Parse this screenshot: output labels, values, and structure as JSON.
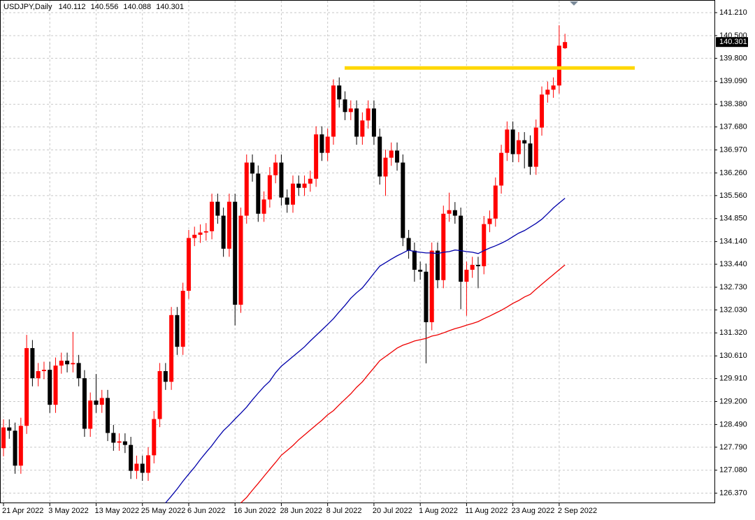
{
  "chart_data": {
    "type": "candlestick",
    "title": "USDJPY,Daily",
    "categories": [
      "21 Apr 2022",
      null,
      null,
      null,
      null,
      null,
      null,
      null,
      "3 May 2022",
      null,
      null,
      null,
      null,
      null,
      null,
      null,
      "13 May 2022",
      null,
      null,
      null,
      null,
      null,
      null,
      null,
      "25 May 2022",
      null,
      null,
      null,
      null,
      null,
      null,
      null,
      "6 Jun 2022",
      null,
      null,
      null,
      null,
      null,
      null,
      null,
      "16 Jun 2022",
      null,
      null,
      null,
      null,
      null,
      null,
      null,
      "28 Jun 2022",
      null,
      null,
      null,
      null,
      null,
      null,
      null,
      "8 Jul 2022",
      null,
      null,
      null,
      null,
      null,
      null,
      null,
      "20 Jul 2022",
      null,
      null,
      null,
      null,
      null,
      null,
      null,
      "1 Aug 2022",
      null,
      null,
      null,
      null,
      null,
      null,
      null,
      "11 Aug 2022",
      null,
      null,
      null,
      null,
      null,
      null,
      null,
      "23 Aug 2022",
      null,
      null,
      null,
      null,
      null,
      null,
      null,
      "2 Sep 2022",
      null
    ],
    "candles": {
      "up_color": "#ff0000",
      "down_color": "#000000",
      "open": [
        127.76,
        128.4,
        128.3,
        127.22,
        128.45,
        130.85,
        129.92,
        130.14,
        130.18,
        129.1,
        130.31,
        130.46,
        130.35,
        130.39,
        129.92,
        128.36,
        129.23,
        129.1,
        129.31,
        128.23,
        127.93,
        127.97,
        127.86,
        127.06,
        127.28,
        127.0,
        127.54,
        128.66,
        130.14,
        129.81,
        131.87,
        130.89,
        132.62,
        134.25,
        134.35,
        134.42,
        134.46,
        135.37,
        134.94,
        133.92,
        135.37,
        132.19,
        134.94,
        136.58,
        136.24,
        135.0,
        135.44,
        136.19,
        136.58,
        135.5,
        135.28,
        135.93,
        135.8,
        135.93,
        136.08,
        137.45,
        136.88,
        137.38,
        138.96,
        138.53,
        138.14,
        138.25,
        137.38,
        137.88,
        138.25,
        137.38,
        136.15,
        136.73,
        136.95,
        136.58,
        134.25,
        133.86,
        133.27,
        133.21,
        131.65,
        133.86,
        132.95,
        135.0,
        135.11,
        134.94,
        132.9,
        133.27,
        133.42,
        133.38,
        134.68,
        134.85,
        135.87,
        136.88,
        137.6,
        136.84,
        137.27,
        137.17,
        136.45,
        137.66,
        138.68,
        138.83,
        138.96,
        140.112
      ],
      "high": [
        128.65,
        128.65,
        128.55,
        128.7,
        131.26,
        131.1,
        130.39,
        130.43,
        130.43,
        130.56,
        130.71,
        130.71,
        131.35,
        130.64,
        130.17,
        129.48,
        130.05,
        129.56,
        129.56,
        128.48,
        128.22,
        128.22,
        128.11,
        127.53,
        127.53,
        127.79,
        128.91,
        130.39,
        130.39,
        132.12,
        132.12,
        132.87,
        134.5,
        134.6,
        134.67,
        134.71,
        135.62,
        135.62,
        135.19,
        135.62,
        135.62,
        135.19,
        136.83,
        136.83,
        136.49,
        135.69,
        136.44,
        136.83,
        136.83,
        135.75,
        136.18,
        136.18,
        136.18,
        136.33,
        137.7,
        137.7,
        137.63,
        139.15,
        139.21,
        138.78,
        138.5,
        138.5,
        138.13,
        138.5,
        138.5,
        137.63,
        136.98,
        137.2,
        137.2,
        136.83,
        134.5,
        134.11,
        133.52,
        133.46,
        134.11,
        134.11,
        135.25,
        135.65,
        135.36,
        135.19,
        133.52,
        133.67,
        133.67,
        134.93,
        135.1,
        136.12,
        137.13,
        137.85,
        137.85,
        137.52,
        137.52,
        137.42,
        137.91,
        138.93,
        139.08,
        139.21,
        140.82,
        140.556
      ],
      "low": [
        127.51,
        128.05,
        126.97,
        126.97,
        128.2,
        129.67,
        129.67,
        129.89,
        128.85,
        128.85,
        130.06,
        130.1,
        130.1,
        129.67,
        128.11,
        128.11,
        128.85,
        128.85,
        127.98,
        127.68,
        127.68,
        127.61,
        126.81,
        126.81,
        126.75,
        126.75,
        127.29,
        128.41,
        129.56,
        129.56,
        130.64,
        130.64,
        132.37,
        134.0,
        134.1,
        134.17,
        134.21,
        134.69,
        133.67,
        133.67,
        131.55,
        131.94,
        134.69,
        135.99,
        134.75,
        134.75,
        135.19,
        135.94,
        135.25,
        135.03,
        135.03,
        135.55,
        135.55,
        135.68,
        135.83,
        136.63,
        136.63,
        137.13,
        138.28,
        137.89,
        137.89,
        137.13,
        137.13,
        137.63,
        137.13,
        135.9,
        135.55,
        136.48,
        136.33,
        134.0,
        133.61,
        132.9,
        132.96,
        130.38,
        131.4,
        132.7,
        132.7,
        134.75,
        134.69,
        132.05,
        131.85,
        133.02,
        132.7,
        133.13,
        134.43,
        134.6,
        135.62,
        136.63,
        136.59,
        136.59,
        136.4,
        136.2,
        136.2,
        137.41,
        138.43,
        138.58,
        138.71,
        140.088
      ],
      "close": [
        128.4,
        128.3,
        127.22,
        128.45,
        130.85,
        129.92,
        130.14,
        130.18,
        129.1,
        130.31,
        130.46,
        130.35,
        130.39,
        129.92,
        128.36,
        129.23,
        129.1,
        129.31,
        128.23,
        127.93,
        127.97,
        127.86,
        127.06,
        127.28,
        127.0,
        127.54,
        128.66,
        130.14,
        129.81,
        131.87,
        130.89,
        132.62,
        134.25,
        134.35,
        134.42,
        134.46,
        135.37,
        134.94,
        133.92,
        135.37,
        132.19,
        134.94,
        136.58,
        136.24,
        135.0,
        135.44,
        136.19,
        136.58,
        135.5,
        135.28,
        135.93,
        135.8,
        135.93,
        136.08,
        137.45,
        136.88,
        137.38,
        138.96,
        138.53,
        138.14,
        138.25,
        137.38,
        137.88,
        138.25,
        137.38,
        136.15,
        136.73,
        136.95,
        136.58,
        134.25,
        133.86,
        133.27,
        133.21,
        131.65,
        133.86,
        132.95,
        135.0,
        135.11,
        134.94,
        132.9,
        133.27,
        133.42,
        133.38,
        134.68,
        134.85,
        135.87,
        136.88,
        137.6,
        136.84,
        137.27,
        137.17,
        136.45,
        137.66,
        138.68,
        138.83,
        138.96,
        140.19,
        140.301
      ]
    },
    "lines": [
      {
        "color": "#0000aa",
        "values": [
          null,
          null,
          null,
          null,
          null,
          null,
          null,
          null,
          null,
          null,
          null,
          null,
          null,
          null,
          null,
          null,
          null,
          null,
          null,
          null,
          null,
          null,
          null,
          null,
          null,
          null,
          null,
          null,
          126.07,
          126.28,
          126.5,
          126.74,
          126.96,
          127.17,
          127.41,
          127.63,
          127.84,
          128.08,
          128.3,
          128.47,
          128.66,
          128.84,
          129.03,
          129.25,
          129.46,
          129.66,
          129.83,
          130.09,
          130.29,
          130.44,
          130.59,
          130.74,
          130.89,
          131.07,
          131.24,
          131.41,
          131.58,
          131.76,
          131.97,
          132.17,
          132.39,
          132.56,
          132.71,
          132.93,
          133.16,
          133.38,
          133.49,
          133.6,
          133.7,
          133.79,
          133.88,
          133.83,
          133.81,
          133.79,
          133.79,
          133.77,
          133.81,
          133.83,
          133.88,
          133.86,
          133.83,
          133.81,
          133.77,
          133.86,
          133.94,
          134.01,
          134.09,
          134.18,
          134.29,
          134.4,
          134.48,
          134.59,
          134.7,
          134.83,
          135.0,
          135.18,
          135.33,
          135.48
        ]
      },
      {
        "color": "#ee0000",
        "values": [
          null,
          null,
          null,
          null,
          null,
          null,
          null,
          null,
          null,
          null,
          null,
          null,
          null,
          null,
          null,
          null,
          null,
          null,
          null,
          null,
          null,
          null,
          null,
          null,
          null,
          null,
          null,
          null,
          null,
          null,
          null,
          null,
          null,
          null,
          null,
          null,
          null,
          null,
          null,
          null,
          null,
          126.07,
          126.24,
          126.46,
          126.67,
          126.89,
          127.11,
          127.32,
          127.54,
          127.69,
          127.84,
          128.02,
          128.17,
          128.32,
          128.47,
          128.62,
          128.79,
          128.92,
          129.1,
          129.27,
          129.44,
          129.64,
          129.81,
          130.03,
          130.24,
          130.46,
          130.59,
          130.72,
          130.85,
          130.94,
          131.0,
          131.07,
          131.11,
          131.15,
          131.22,
          131.26,
          131.32,
          131.39,
          131.45,
          131.5,
          131.56,
          131.61,
          131.67,
          131.76,
          131.84,
          131.93,
          132.02,
          132.12,
          132.23,
          132.32,
          132.43,
          132.51,
          132.67,
          132.82,
          132.97,
          133.12,
          133.27,
          133.42
        ]
      }
    ],
    "hline": {
      "value": 139.5,
      "color": "#ffd700"
    },
    "ylim": [
      126.06,
      141.6
    ],
    "yticks": [
      {
        "value": 141.21,
        "label": "141.210"
      },
      {
        "value": 140.5,
        "label": "140.500"
      },
      {
        "value": 139.8,
        "label": "139.800"
      },
      {
        "value": 139.09,
        "label": "139.090"
      },
      {
        "value": 138.38,
        "label": "138.380"
      },
      {
        "value": 137.68,
        "label": "137.680"
      },
      {
        "value": 136.97,
        "label": "136.970"
      },
      {
        "value": 136.26,
        "label": "136.260"
      },
      {
        "value": 135.56,
        "label": "135.560"
      },
      {
        "value": 134.85,
        "label": "134.850"
      },
      {
        "value": 134.14,
        "label": "134.140"
      },
      {
        "value": 133.44,
        "label": "133.440"
      },
      {
        "value": 132.73,
        "label": "132.730"
      },
      {
        "value": 132.03,
        "label": "132.030"
      },
      {
        "value": 131.32,
        "label": "131.320"
      },
      {
        "value": 130.61,
        "label": "130.610"
      },
      {
        "value": 129.91,
        "label": "129.910"
      },
      {
        "value": 129.2,
        "label": "129.200"
      },
      {
        "value": 128.49,
        "label": "128.490"
      },
      {
        "value": 127.79,
        "label": "127.790"
      },
      {
        "value": 127.08,
        "label": "127.080"
      },
      {
        "value": 126.37,
        "label": "126.370"
      }
    ],
    "grid": true
  }
}
